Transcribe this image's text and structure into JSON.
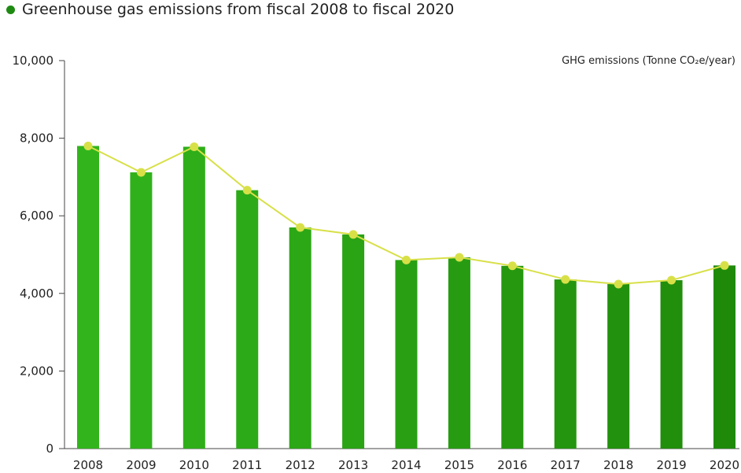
{
  "chart_data": {
    "type": "bar",
    "title": "Greenhouse gas emissions from fiscal 2008 to fiscal 2020",
    "unit_label": "GHG emissions  (Tonne CO₂e/year)",
    "categories": [
      "2008",
      "2009",
      "2010",
      "2011",
      "2012",
      "2013",
      "2014",
      "2015",
      "2016",
      "2017",
      "2018",
      "2019",
      "2020"
    ],
    "values": [
      7800,
      7120,
      7780,
      6660,
      5700,
      5520,
      4860,
      4930,
      4710,
      4360,
      4240,
      4340,
      4720
    ],
    "line_values": [
      7800,
      7120,
      7780,
      6660,
      5700,
      5520,
      4860,
      4930,
      4710,
      4360,
      4240,
      4340,
      4720
    ],
    "yticks": [
      "0",
      "2,000",
      "4,000",
      "6,000",
      "8,000",
      "10,000"
    ],
    "ytick_values": [
      0,
      2000,
      4000,
      6000,
      8000,
      10000
    ],
    "ylim": [
      0,
      10000
    ],
    "bar_color_start": "#32b51c",
    "bar_color_end": "#1f8a0a",
    "line_color": "#d8e048",
    "title_dot_color": "#1f8a12"
  }
}
